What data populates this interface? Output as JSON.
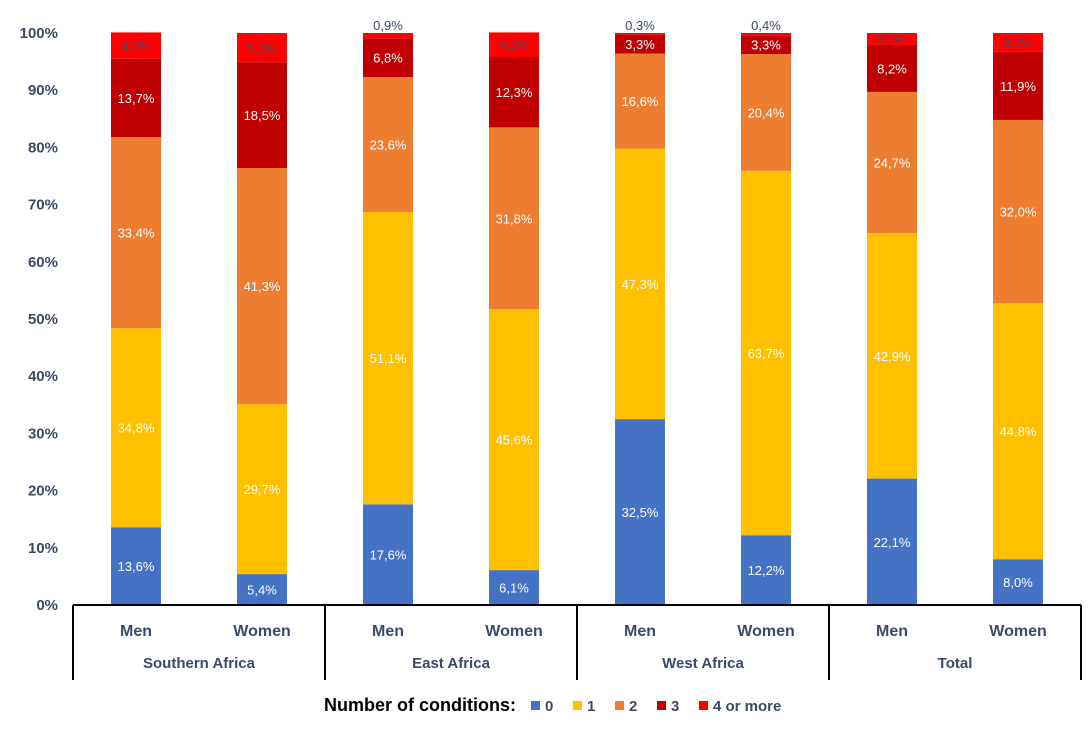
{
  "chart_data": {
    "type": "stacked-bar-100",
    "groups": [
      "Southern Africa",
      "East Africa",
      "West Africa",
      "Total"
    ],
    "subcategories": [
      "Men",
      "Women"
    ],
    "ylim": [
      0,
      100
    ],
    "yticks": [
      "0%",
      "10%",
      "20%",
      "30%",
      "40%",
      "50%",
      "60%",
      "70%",
      "80%",
      "90%",
      "100%"
    ],
    "legend_title": "Number of conditions:",
    "legend_position": "bottom",
    "series": [
      {
        "name": "0",
        "color": "#4472c4",
        "values": [
          13.6,
          5.4,
          17.6,
          6.1,
          32.5,
          12.2,
          22.1,
          8.0
        ],
        "labels": [
          "13,6%",
          "5,4%",
          "17,6%",
          "6,1%",
          "32,5%",
          "12,2%",
          "22,1%",
          "8,0%"
        ]
      },
      {
        "name": "1",
        "color": "#ffc000",
        "values": [
          34.8,
          29.7,
          51.1,
          45.6,
          47.3,
          63.7,
          42.9,
          44.8
        ],
        "labels": [
          "34,8%",
          "29,7%",
          "51,1%",
          "45,6%",
          "47,3%",
          "63,7%",
          "42,9%",
          "44,8%"
        ]
      },
      {
        "name": "2",
        "color": "#ed7d31",
        "values": [
          33.4,
          41.3,
          23.6,
          31.8,
          16.6,
          20.4,
          24.7,
          32.0
        ],
        "labels": [
          "33,4%",
          "41,3%",
          "23,6%",
          "31,8%",
          "16,6%",
          "20,4%",
          "24,7%",
          "32,0%"
        ]
      },
      {
        "name": "3",
        "color": "#c00000",
        "values": [
          13.7,
          18.5,
          6.8,
          12.3,
          3.3,
          3.3,
          8.2,
          11.9
        ],
        "labels": [
          "13,7%",
          "18,5%",
          "6,8%",
          "12,3%",
          "3,3%",
          "3,3%",
          "8,2%",
          "11,9%"
        ]
      },
      {
        "name": "4 or more",
        "color": "#ff0000",
        "values": [
          4.6,
          5.1,
          0.9,
          4.3,
          0.3,
          0.4,
          2.1,
          3.3
        ],
        "labels": [
          "4,6%",
          "5,1%",
          "0,9%",
          "4,3%",
          "0,3%",
          "0,4%",
          "2,1%",
          "3,3%"
        ]
      }
    ]
  }
}
